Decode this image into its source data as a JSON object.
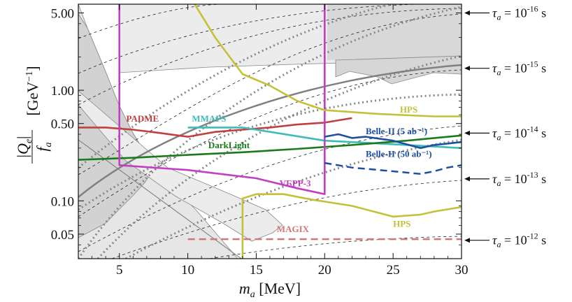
{
  "chart_data": {
    "type": "line",
    "xlabel": "m_a [MeV]",
    "ylabel": "|Q_e|/f_a [GeV^-1]",
    "xlim": [
      2,
      30
    ],
    "ylim": [
      0.03,
      6.0
    ],
    "yscale": "log",
    "grid": false,
    "x_ticks": [
      5,
      10,
      15,
      20,
      25,
      30
    ],
    "y_ticks": [
      {
        "value": 0.05,
        "label": "0.05"
      },
      {
        "value": 0.1,
        "label": "0.10"
      },
      {
        "value": 0.5,
        "label": "0.50"
      },
      {
        "value": 1.0,
        "label": "1.00"
      },
      {
        "value": 5.0,
        "label": "5.00"
      }
    ],
    "tau_lines": [
      {
        "exponent": "-16",
        "value": 5.0,
        "label_value": 5.0
      },
      {
        "exponent": "-15",
        "value": 1.58,
        "label_value": 1.58
      },
      {
        "exponent": "-14",
        "value": 0.5,
        "label_value": 0.41
      },
      {
        "exponent": "-13",
        "value": 0.158,
        "label_value": 0.158
      },
      {
        "exponent": "-12",
        "value": 0.05,
        "label_value": 0.044
      }
    ],
    "tau_label_prefix": "τ",
    "tau_label_sub": "a",
    "tau_label_mid": " = 10",
    "tau_label_unit": " s",
    "series": [
      {
        "name": "PADME",
        "label": "PADME",
        "color": "#c0403e",
        "style": "solid",
        "x": [
          2,
          4,
          6,
          8,
          10,
          12,
          14,
          16,
          18,
          20,
          22
        ],
        "y": [
          0.46,
          0.46,
          0.44,
          0.41,
          0.38,
          0.42,
          0.44,
          0.46,
          0.49,
          0.51,
          0.56
        ]
      },
      {
        "name": "MMAPS",
        "label": "MMAPS",
        "color": "#3cbcb8",
        "style": "solid",
        "x": [
          10,
          14,
          20,
          24,
          28,
          30
        ],
        "y": [
          0.46,
          0.46,
          0.35,
          0.33,
          0.31,
          0.3
        ]
      },
      {
        "name": "DarkLight",
        "label": "DarkLight",
        "color": "#1b7a1b",
        "style": "solid",
        "x": [
          2,
          6,
          10,
          14,
          18,
          22,
          26,
          30
        ],
        "y": [
          0.235,
          0.245,
          0.26,
          0.275,
          0.295,
          0.32,
          0.35,
          0.39
        ]
      },
      {
        "name": "VEPP-3",
        "label": "VEPP-3",
        "color": "#c43ec4",
        "style": "solid",
        "x": [
          5,
          5,
          10,
          15,
          18,
          20,
          20
        ],
        "y": [
          6.0,
          0.21,
          0.19,
          0.16,
          0.13,
          0.115,
          6.0
        ]
      },
      {
        "name": "HPS-upper",
        "label": "HPS",
        "color": "#c4c038",
        "style": "solid",
        "x": [
          10.5,
          12,
          14,
          16,
          18,
          20,
          24,
          28,
          30
        ],
        "y": [
          6.0,
          3.0,
          1.4,
          1.1,
          0.8,
          0.66,
          0.61,
          0.58,
          0.58
        ]
      },
      {
        "name": "HPS-lower",
        "label": "HPS",
        "color": "#c4c038",
        "style": "solid",
        "x": [
          14,
          14,
          15,
          17,
          19,
          22,
          25,
          27,
          28,
          30
        ],
        "y": [
          0.03,
          0.105,
          0.115,
          0.115,
          0.103,
          0.09,
          0.072,
          0.075,
          0.08,
          0.088
        ]
      },
      {
        "name": "MAGIX",
        "label": "MAGIX",
        "color": "#d07878",
        "style": "dashed",
        "x": [
          10,
          30
        ],
        "y": [
          0.045,
          0.045
        ]
      },
      {
        "name": "Belle-II (5 ab-1)",
        "label": "Belle-II (5 ab⁻¹)",
        "color": "#1f4fa0",
        "style": "solid",
        "x": [
          20,
          21,
          22,
          23,
          25,
          27,
          28,
          30
        ],
        "y": [
          0.38,
          0.4,
          0.37,
          0.38,
          0.35,
          0.3,
          0.32,
          0.34
        ]
      },
      {
        "name": "Belle-II (50 ab-1)",
        "label": "Belle-II (50 ab⁻¹)",
        "color": "#1f4fa0",
        "style": "dashed",
        "x": [
          20,
          22,
          25,
          27,
          28,
          29,
          30
        ],
        "y": [
          0.22,
          0.2,
          0.185,
          0.175,
          0.185,
          0.2,
          0.21
        ]
      }
    ],
    "annotations": [
      {
        "series": "PADME",
        "text": "PADME",
        "x": 5.5,
        "y": 0.52
      },
      {
        "series": "MMAPS",
        "text": "MMAPS",
        "x": 10.3,
        "y": 0.52
      },
      {
        "series": "DarkLight",
        "text": "DarkLight",
        "x": 11.5,
        "y": 0.3
      },
      {
        "series": "VEPP-3",
        "text": "VEPP-3",
        "x": 16.7,
        "y": 0.135
      },
      {
        "series": "HPS-upper",
        "text": "HPS",
        "x": 25.5,
        "y": 0.63
      },
      {
        "series": "HPS-lower",
        "text": "HPS",
        "x": 25.0,
        "y": 0.058
      },
      {
        "series": "MAGIX",
        "text": "MAGIX",
        "x": 16.5,
        "y": 0.052
      },
      {
        "series": "Belle-II (5 ab-1)",
        "text": "Belle-II (5 ab⁻¹)",
        "x": 23.0,
        "y": 0.4
      },
      {
        "series": "Belle-II (50 ab-1)",
        "text": "Belle-II (50 ab⁻¹)",
        "x": 23.0,
        "y": 0.25
      }
    ]
  }
}
